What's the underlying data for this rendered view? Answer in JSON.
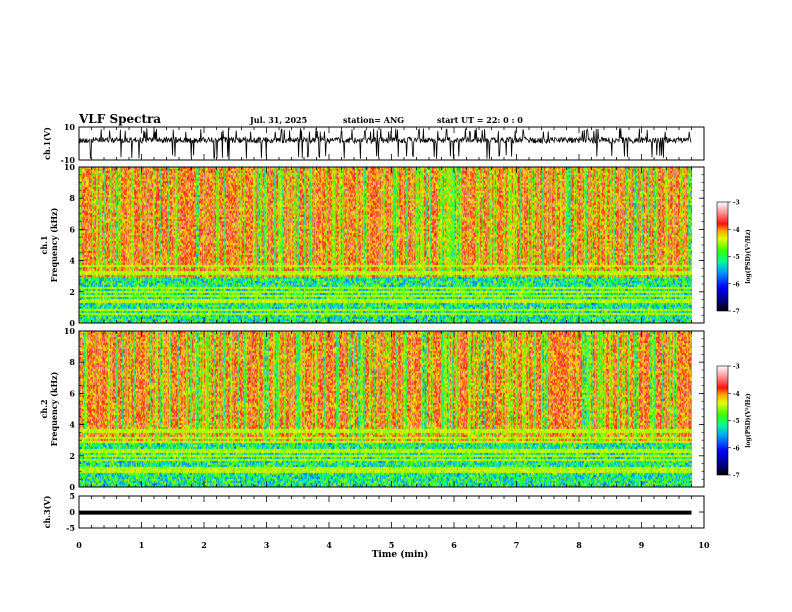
{
  "header": {
    "title": "VLF Spectra",
    "date": "Jul. 31, 2025",
    "station": "station= ANG",
    "start": "start UT =  22: 0 : 0"
  },
  "chart_data": [
    {
      "type": "line",
      "name": "ch1-waveform",
      "ylabel": "ch.1(V)",
      "ylim": [
        -10,
        10
      ],
      "yticks": [
        "10",
        "-10"
      ],
      "description_series": "noisy waveform centered near 2 V with frequent spikes to the axis limits",
      "x_range_min": [
        0,
        9.8
      ]
    },
    {
      "type": "heatmap",
      "name": "ch1-spectrogram",
      "ylabel": "ch.1 Frequency (kHz)",
      "ylim": [
        0,
        10
      ],
      "yticks": [
        "0",
        "2",
        "4",
        "6",
        "8",
        "10"
      ],
      "x_range_min": [
        0,
        9.8
      ],
      "colorbar": {
        "label": "log(PSD)(V²/Hz)",
        "range": [
          -7,
          -3
        ],
        "ticks": [
          "-3",
          "-4",
          "-5",
          "-6",
          "-7"
        ]
      }
    },
    {
      "type": "heatmap",
      "name": "ch2-spectrogram",
      "ylabel": "ch.2 Frequency (kHz)",
      "ylim": [
        0,
        10
      ],
      "yticks": [
        "0",
        "2",
        "4",
        "6",
        "8",
        "10"
      ],
      "x_range_min": [
        0,
        9.8
      ],
      "colorbar": {
        "label": "log(PSD)(V²/Hz)",
        "range": [
          -7,
          -3
        ],
        "ticks": [
          "-3",
          "-4",
          "-5",
          "-6",
          "-7"
        ]
      }
    },
    {
      "type": "line",
      "name": "ch3-waveform",
      "ylabel": "ch.3(V)",
      "ylim": [
        -5,
        5
      ],
      "yticks": [
        "5",
        "0",
        "-5"
      ],
      "constant_value": -0.2,
      "x_range_min": [
        0,
        9.8
      ]
    }
  ],
  "xaxis": {
    "label": "Time (min)",
    "ticks": [
      "0",
      "1",
      "2",
      "3",
      "4",
      "5",
      "6",
      "7",
      "8",
      "9",
      "10"
    ],
    "xlim": [
      0,
      10
    ]
  },
  "colors": {
    "scale": [
      "#000060",
      "#0000ff",
      "#00a0ff",
      "#00ffa0",
      "#40ff00",
      "#e0ff00",
      "#ffb000",
      "#ff2020",
      "#ff9090",
      "#ffffff"
    ]
  }
}
